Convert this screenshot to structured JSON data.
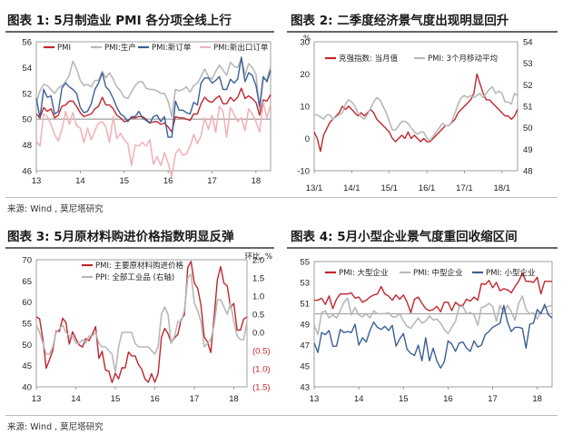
{
  "titles": {
    "p1": "图表 1: 5月制造业 PMI 各分项全线上行",
    "p2": "图表 2: 二季度经济景气度出现明显回升",
    "p3": "图表 3: 5月原材料购进价格指数明显反弹",
    "p4": "图表 4: 5月小型企业景气度重回收缩区间"
  },
  "source_text": "来源: Wind , 莫尼塔研究",
  "colors": {
    "pmi": "#c0262d",
    "gray": "#b8b8b8",
    "pink": "#f0b4b8",
    "blue": "#3a5f97",
    "refline": "#a8a8a8"
  },
  "chart_data": [
    {
      "id": "p1",
      "type": "line",
      "title": "图表 1: 5月制造业 PMI 各分项全线上行",
      "x": {
        "start": "2013-01",
        "end": "2018-05",
        "ticks": [
          "13",
          "14",
          "15",
          "16",
          "17",
          "18"
        ]
      },
      "ylim": [
        46,
        56
      ],
      "yticks": [
        46,
        48,
        50,
        52,
        54,
        56
      ],
      "reference_line": 50,
      "legend": "top",
      "series": [
        {
          "name": "PMI",
          "color": "#c0262d",
          "values": [
            50.4,
            50.1,
            50.9,
            50.6,
            50.8,
            50.1,
            50.3,
            51.0,
            51.1,
            51.4,
            51.4,
            51.0,
            50.5,
            50.2,
            50.3,
            50.4,
            50.8,
            51.0,
            51.7,
            51.1,
            51.1,
            50.8,
            50.3,
            50.1,
            49.8,
            49.9,
            50.1,
            50.1,
            50.2,
            50.2,
            50.0,
            49.7,
            49.8,
            49.8,
            49.6,
            49.7,
            49.4,
            49.0,
            50.2,
            50.1,
            50.1,
            50.0,
            49.9,
            50.4,
            50.4,
            51.2,
            51.7,
            51.4,
            51.3,
            51.6,
            51.8,
            51.2,
            51.2,
            51.7,
            51.4,
            51.7,
            52.4,
            51.6,
            51.8,
            51.6,
            51.3,
            50.3,
            51.5,
            51.4,
            51.9
          ]
        },
        {
          "name": "PMI:生产",
          "color": "#b8b8b8",
          "values": [
            51.3,
            52.2,
            52.7,
            52.6,
            52.3,
            52.0,
            52.4,
            52.6,
            52.9,
            53.4,
            54.5,
            53.9,
            53.0,
            52.6,
            52.7,
            52.5,
            53.0,
            53.0,
            53.7,
            53.2,
            53.6,
            53.1,
            52.5,
            52.2,
            51.7,
            51.6,
            52.1,
            52.6,
            52.9,
            52.9,
            52.4,
            52.3,
            52.3,
            52.2,
            52.0,
            52.0,
            51.4,
            50.2,
            52.3,
            52.2,
            52.3,
            52.5,
            52.1,
            52.6,
            52.8,
            53.3,
            53.9,
            53.3,
            53.1,
            53.7,
            54.2,
            53.8,
            53.4,
            54.4,
            54.1,
            54.0,
            54.7,
            53.4,
            54.3,
            54.0,
            53.5,
            50.7,
            53.1,
            53.1,
            54.1
          ]
        },
        {
          "name": "PMI:新订单",
          "color": "#3a5f97",
          "values": [
            51.6,
            50.1,
            52.3,
            51.7,
            51.8,
            50.4,
            50.6,
            52.4,
            52.8,
            52.5,
            52.3,
            52.0,
            50.9,
            50.5,
            50.6,
            51.2,
            52.3,
            52.8,
            53.6,
            52.5,
            52.2,
            51.6,
            50.9,
            50.4,
            50.2,
            49.8,
            50.2,
            50.2,
            50.6,
            50.1,
            49.9,
            49.7,
            50.2,
            50.3,
            49.8,
            50.2,
            48.6,
            48.6,
            51.4,
            50.7,
            50.7,
            50.5,
            50.4,
            51.3,
            51.1,
            52.8,
            53.2,
            53.2,
            52.8,
            53.0,
            53.3,
            52.3,
            52.3,
            53.1,
            52.8,
            53.1,
            54.8,
            52.9,
            53.6,
            53.4,
            52.6,
            51.0,
            53.3,
            52.9,
            53.8
          ]
        },
        {
          "name": "PMI:新出口订单",
          "color": "#f0b4b8",
          "values": [
            48.3,
            47.9,
            50.4,
            50.2,
            49.6,
            48.8,
            48.3,
            49.2,
            50.6,
            49.6,
            50.5,
            49.5,
            49.3,
            48.2,
            49.3,
            48.4,
            49.1,
            49.7,
            49.8,
            49.4,
            48.2,
            50.2,
            48.5,
            48.9,
            48.4,
            48.1,
            46.4,
            48.0,
            47.9,
            48.2,
            47.9,
            48.4,
            46.5,
            47.1,
            46.4,
            47.4,
            46.6,
            45.5,
            47.3,
            47.7,
            47.2,
            47.3,
            47.9,
            48.8,
            48.1,
            48.7,
            50.1,
            49.2,
            50.3,
            49.0,
            51.0,
            50.6,
            48.6,
            50.9,
            50.4,
            49.8,
            50.1,
            49.1,
            50.8,
            50.4,
            49.8,
            49.0,
            51.3,
            50.1,
            51.2
          ]
        }
      ]
    },
    {
      "id": "p2",
      "type": "line",
      "title": "图表 2: 二季度经济景气度出现明显回升",
      "x": {
        "start": "2013-01",
        "end": "2018-06",
        "ticks": [
          "13/1",
          "14/1",
          "15/1",
          "16/1",
          "17/1",
          "18/1"
        ]
      },
      "y_left": {
        "lim": [
          -10,
          30
        ],
        "ticks": [
          -10,
          0,
          10,
          20,
          30
        ],
        "unit": "%"
      },
      "y_right": {
        "lim": [
          48,
          54
        ],
        "ticks": [
          48,
          49,
          50,
          51,
          52,
          53,
          54
        ]
      },
      "legend": "top",
      "series": [
        {
          "name": "克强指数: 当月值",
          "color": "#c0262d",
          "axis": "left",
          "values": [
            2,
            0,
            -4,
            1,
            3,
            5,
            6,
            7,
            8,
            10,
            9,
            10,
            9,
            8,
            7,
            8,
            7,
            8,
            9,
            8,
            6,
            5,
            4,
            3,
            2,
            0,
            -1,
            0,
            1,
            0,
            2,
            0,
            1,
            0,
            -1,
            0,
            -1,
            -1,
            0,
            1,
            2,
            3,
            4,
            4,
            5,
            6,
            8,
            9,
            10,
            11,
            12,
            14,
            20,
            17,
            14,
            12,
            12,
            11,
            10,
            9,
            8,
            7,
            7,
            6,
            7,
            9
          ]
        },
        {
          "name": "PMI: 3个月移动平均",
          "color": "#b8b8b8",
          "axis": "right",
          "values": [
            50.6,
            50.6,
            50.5,
            50.4,
            50.6,
            50.6,
            50.4,
            50.5,
            50.6,
            50.7,
            51.1,
            51.3,
            51.2,
            51.0,
            50.7,
            50.5,
            50.4,
            50.6,
            50.9,
            51.2,
            51.4,
            51.3,
            51.0,
            50.7,
            50.3,
            49.9,
            49.9,
            50.1,
            50.3,
            50.3,
            50.2,
            50.0,
            49.8,
            49.7,
            49.8,
            49.8,
            49.5,
            49.4,
            49.6,
            49.8,
            50.0,
            50.2,
            50.1,
            50.1,
            50.3,
            50.7,
            51.1,
            51.4,
            51.5,
            51.4,
            51.5,
            51.4,
            51.5,
            51.6,
            51.4,
            51.6,
            51.8,
            51.9,
            51.6,
            51.7,
            51.6,
            51.2,
            51.2,
            51.1,
            51.6,
            51.5
          ]
        }
      ]
    },
    {
      "id": "p3",
      "type": "line",
      "title": "图表 3: 5月原材料购进价格指数明显反弹",
      "x": {
        "start": "2013-01",
        "end": "2018-05",
        "ticks": [
          "13",
          "14",
          "15",
          "16",
          "17",
          "18"
        ]
      },
      "y_left": {
        "lim": [
          40,
          70
        ],
        "ticks": [
          40,
          45,
          50,
          55,
          60,
          65,
          70
        ]
      },
      "y_right": {
        "lim": [
          -1.5,
          2.0
        ],
        "ticks": [
          "(1.5)",
          "(1.0)",
          "(0.5)",
          "0.0",
          "0.5",
          "1.0",
          "1.5",
          "2.0"
        ],
        "unit": "环比, %"
      },
      "legend": "top",
      "series": [
        {
          "name": "PMI: 主要原材料购进价格",
          "color": "#c0262d",
          "axis": "left",
          "values": [
            56.5,
            56.1,
            51.1,
            44.4,
            46.4,
            48.6,
            53.2,
            53.1,
            56.2,
            55.2,
            50.1,
            53.0,
            51.4,
            49.9,
            49.4,
            51.4,
            50.9,
            52.4,
            54.2,
            46.7,
            48.4,
            44.0,
            43.7,
            41.0,
            43.2,
            41.9,
            44.5,
            44.5,
            48.2,
            47.3,
            47.3,
            45.3,
            44.2,
            41.9,
            41.1,
            43.1,
            41.1,
            43.1,
            51.7,
            53.8,
            52.6,
            50.4,
            51.6,
            52.4,
            55.9,
            57.0,
            68.2,
            69.6,
            64.5,
            63.3,
            59.3,
            51.8,
            50.6,
            48.1,
            56.5,
            65.3,
            68.4,
            64.5,
            63.8,
            58.7,
            59.7,
            53.4,
            53.4,
            56.0,
            56.5
          ]
        },
        {
          "name": "PPI: 全部工业品 (右轴)",
          "color": "#b8b8b8",
          "axis": "right",
          "values": [
            0.2,
            0.0,
            -0.3,
            -0.6,
            -0.6,
            -0.4,
            0.0,
            0.1,
            0.2,
            0.0,
            -0.1,
            -0.1,
            -0.3,
            -0.3,
            -0.2,
            -0.3,
            -0.1,
            -0.1,
            0.0,
            -0.3,
            -0.4,
            -0.4,
            -0.5,
            -0.6,
            -1.1,
            -0.4,
            0.0,
            0.0,
            0.0,
            0.0,
            -0.3,
            -0.4,
            -0.4,
            -0.4,
            -0.4,
            -0.5,
            -0.6,
            -0.4,
            0.5,
            0.7,
            0.5,
            -0.3,
            -0.1,
            0.3,
            0.3,
            0.6,
            1.5,
            1.6,
            0.8,
            0.6,
            0.3,
            -0.4,
            -0.3,
            -0.2,
            0.2,
            0.9,
            0.9,
            0.7,
            0.5,
            0.8,
            0.3,
            -0.1,
            -0.2,
            -0.2,
            0.3
          ]
        }
      ]
    },
    {
      "id": "p4",
      "type": "line",
      "title": "图表 4: 5月小型企业景气度重回收缩区间",
      "x": {
        "start": "2013-01",
        "end": "2018-05",
        "ticks": [
          "13",
          "14",
          "15",
          "16",
          "17",
          "18"
        ]
      },
      "ylim": [
        43,
        55
      ],
      "yticks": [
        43,
        45,
        47,
        49,
        51,
        53,
        55
      ],
      "reference_line": 50,
      "legend": "top",
      "series": [
        {
          "name": "PMI: 大型企业",
          "color": "#c0262d",
          "values": [
            51.3,
            51.3,
            51.5,
            50.9,
            51.7,
            50.5,
            51.4,
            51.9,
            51.9,
            51.9,
            52.0,
            51.5,
            51.6,
            51.1,
            51.3,
            51.6,
            51.8,
            51.9,
            52.6,
            51.9,
            51.7,
            51.3,
            51.8,
            51.4,
            51.8,
            51.1,
            50.1,
            51.4,
            51.6,
            51.0,
            50.5,
            50.3,
            50.4,
            50.7,
            50.2,
            51.1,
            51.1,
            50.3,
            51.1,
            50.8,
            50.8,
            51.4,
            51.2,
            51.6,
            51.3,
            52.9,
            52.8,
            53.2,
            52.5,
            53.0,
            52.2,
            52.4,
            52.3,
            52.0,
            52.6,
            53.1,
            53.9,
            53.1,
            53.1,
            53.0,
            53.5,
            51.9,
            53.1,
            53.1,
            53.1
          ]
        },
        {
          "name": "PMI: 中型企业",
          "color": "#b8b8b8",
          "values": [
            48.9,
            48.0,
            50.1,
            50.3,
            49.6,
            49.9,
            49.6,
            50.3,
            51.1,
            51.5,
            49.9,
            50.6,
            49.9,
            49.7,
            50.0,
            49.6,
            50.3,
            50.0,
            50.0,
            50.0,
            50.1,
            49.7,
            49.7,
            50.0,
            49.3,
            48.8,
            48.6,
            49.1,
            49.6,
            49.1,
            49.3,
            49.8,
            49.4,
            49.5,
            49.1,
            48.5,
            48.1,
            48.7,
            49.3,
            50.7,
            50.7,
            50.0,
            50.1,
            49.9,
            48.9,
            50.6,
            50.7,
            51.0,
            50.7,
            49.3,
            50.8,
            50.1,
            50.8,
            50.2,
            49.4,
            51.0,
            51.7,
            50.4,
            50.0,
            50.1,
            49.5,
            50.2,
            50.6,
            50.7,
            50.8
          ]
        },
        {
          "name": "PMI: 小型企业",
          "color": "#3a5f97",
          "values": [
            47.2,
            46.3,
            48.2,
            48.0,
            48.4,
            46.9,
            46.9,
            48.5,
            48.2,
            48.3,
            48.2,
            49.0,
            47.0,
            47.7,
            47.3,
            48.4,
            49.2,
            48.7,
            48.5,
            48.8,
            48.4,
            48.9,
            46.9,
            47.6,
            48.1,
            46.6,
            46.2,
            46.0,
            47.0,
            45.5,
            47.7,
            45.5,
            46.7,
            45.5,
            44.8,
            45.4,
            47.4,
            47.1,
            46.4,
            47.2,
            47.3,
            46.7,
            46.4,
            47.4,
            46.8,
            47.0,
            48.0,
            48.3,
            48.7,
            48.9,
            49.1,
            50.8,
            49.2,
            48.3,
            48.7,
            48.7,
            48.6,
            46.7,
            49.0,
            49.1,
            50.4,
            50.0,
            50.9,
            49.9,
            49.6
          ]
        }
      ]
    }
  ]
}
